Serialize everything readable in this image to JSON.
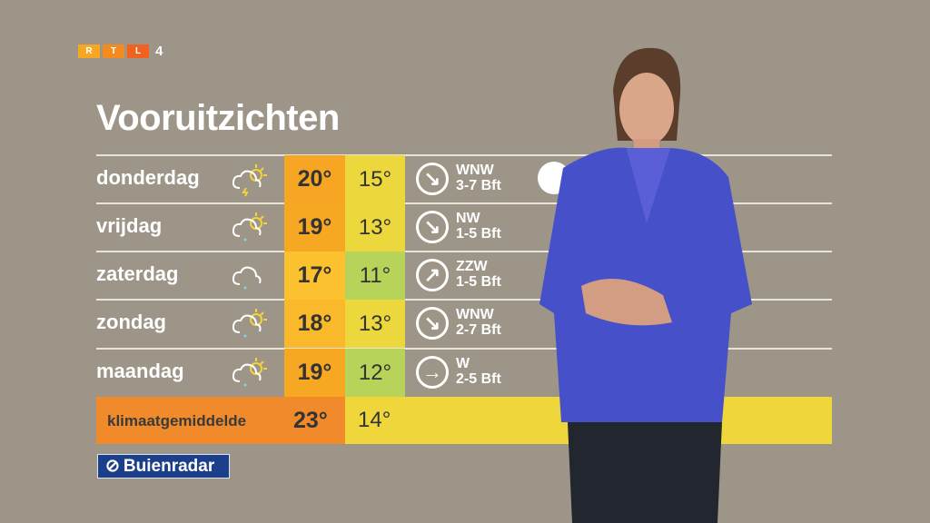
{
  "channel_logo": {
    "letters": [
      "R",
      "T",
      "L"
    ],
    "number": "4",
    "colors": [
      "#f7a823",
      "#f58b1f",
      "#f0621e"
    ]
  },
  "title": "Vooruitzichten",
  "rows": [
    {
      "day": "donderdag",
      "icon": "cloud-sun-thunder-icon",
      "max": "20°",
      "min": "15°",
      "max_color": "#f6a623",
      "min_color": "#ecd83c",
      "wind_arrow": "arrow-down-right",
      "wind_dir": "WNW",
      "wind_force": "3-7 Bft"
    },
    {
      "day": "vrijdag",
      "icon": "cloud-sun-drizzle-icon",
      "max": "19°",
      "min": "13°",
      "max_color": "#f7a823",
      "min_color": "#ecd83c",
      "wind_arrow": "arrow-down-right",
      "wind_dir": "NW",
      "wind_force": "1-5 Bft"
    },
    {
      "day": "zaterdag",
      "icon": "cloud-drizzle-icon",
      "max": "17°",
      "min": "11°",
      "max_color": "#fbc12e",
      "min_color": "#b8d35a",
      "wind_arrow": "arrow-up-right",
      "wind_dir": "ZZW",
      "wind_force": "1-5 Bft"
    },
    {
      "day": "zondag",
      "icon": "cloud-sun-drizzle-icon",
      "max": "18°",
      "min": "13°",
      "max_color": "#f9b92a",
      "min_color": "#ecd83c",
      "wind_arrow": "arrow-down-right",
      "wind_dir": "WNW",
      "wind_force": "2-7 Bft"
    },
    {
      "day": "maandag",
      "icon": "cloud-sun-drizzle-icon",
      "max": "19°",
      "min": "12°",
      "max_color": "#f7a823",
      "min_color": "#b8d35a",
      "wind_arrow": "arrow-right",
      "wind_dir": "W",
      "wind_force": "2-5 Bft"
    }
  ],
  "climate": {
    "label": "klimaatgemiddelde",
    "max": "23°",
    "min": "14°"
  },
  "sponsor": "Buienradar"
}
